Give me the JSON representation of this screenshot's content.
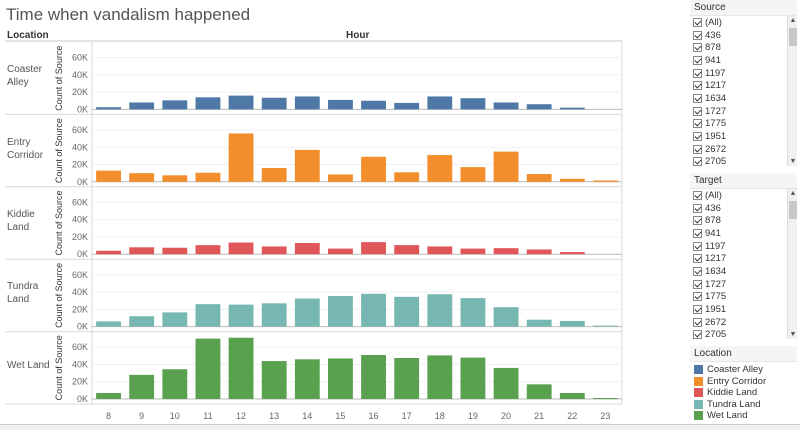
{
  "title": "Time when vandalism happened",
  "row_header": "Location",
  "column_header": "Hour",
  "y_axis_title": "Count of Source",
  "colors": {
    "Coaster Alley": "#4e79a7",
    "Entry Corridor": "#f28e2b",
    "Kiddie Land": "#e15759",
    "Tundra Land": "#76b7b2",
    "Wet Land": "#59a14f"
  },
  "chart_data": {
    "type": "bar",
    "categories": [
      "8",
      "9",
      "10",
      "11",
      "12",
      "13",
      "14",
      "15",
      "16",
      "17",
      "18",
      "19",
      "20",
      "21",
      "22",
      "23"
    ],
    "y_ticks": [
      "0K",
      "20K",
      "40K",
      "60K"
    ],
    "ylim": [
      0,
      70000
    ],
    "series": [
      {
        "name": "Coaster Alley",
        "label_lines": [
          "Coaster",
          "Alley"
        ],
        "values": [
          2500,
          8000,
          10500,
          14000,
          16000,
          13500,
          15000,
          11000,
          10000,
          7500,
          15000,
          13000,
          8000,
          6000,
          2000,
          0
        ]
      },
      {
        "name": "Entry Corridor",
        "label_lines": [
          "Entry",
          "Corridor"
        ],
        "values": [
          13000,
          10000,
          7500,
          10500,
          56000,
          16000,
          37000,
          8500,
          29000,
          11000,
          31000,
          17000,
          35000,
          9000,
          3500,
          1500
        ]
      },
      {
        "name": "Kiddie Land",
        "label_lines": [
          "Kiddie",
          "Land"
        ],
        "values": [
          4000,
          8000,
          7500,
          10500,
          13500,
          9000,
          13000,
          6500,
          14000,
          10500,
          9000,
          6500,
          7000,
          5500,
          2500,
          0
        ]
      },
      {
        "name": "Tundra Land",
        "label_lines": [
          "Tundra",
          "Land"
        ],
        "values": [
          6000,
          12000,
          16500,
          26000,
          25500,
          27000,
          32500,
          35500,
          38000,
          34500,
          37500,
          33000,
          22500,
          8000,
          6500,
          1000
        ]
      },
      {
        "name": "Wet Land",
        "label_lines": [
          "Wet Land"
        ],
        "values": [
          7000,
          28000,
          34500,
          70000,
          71000,
          44000,
          46000,
          47000,
          51000,
          47500,
          50500,
          48000,
          36000,
          17000,
          7000,
          1000
        ]
      }
    ]
  },
  "source_filter": {
    "title": "Source",
    "items": [
      "(All)",
      "436",
      "878",
      "941",
      "1197",
      "1217",
      "1634",
      "1727",
      "1775",
      "1951",
      "2672",
      "2705"
    ]
  },
  "target_filter": {
    "title": "Target",
    "items": [
      "(All)",
      "436",
      "878",
      "941",
      "1197",
      "1217",
      "1634",
      "1727",
      "1775",
      "1951",
      "2672",
      "2705"
    ]
  },
  "legend": {
    "title": "Location",
    "items": [
      "Coaster Alley",
      "Entry Corridor",
      "Kiddie Land",
      "Tundra Land",
      "Wet Land"
    ]
  }
}
